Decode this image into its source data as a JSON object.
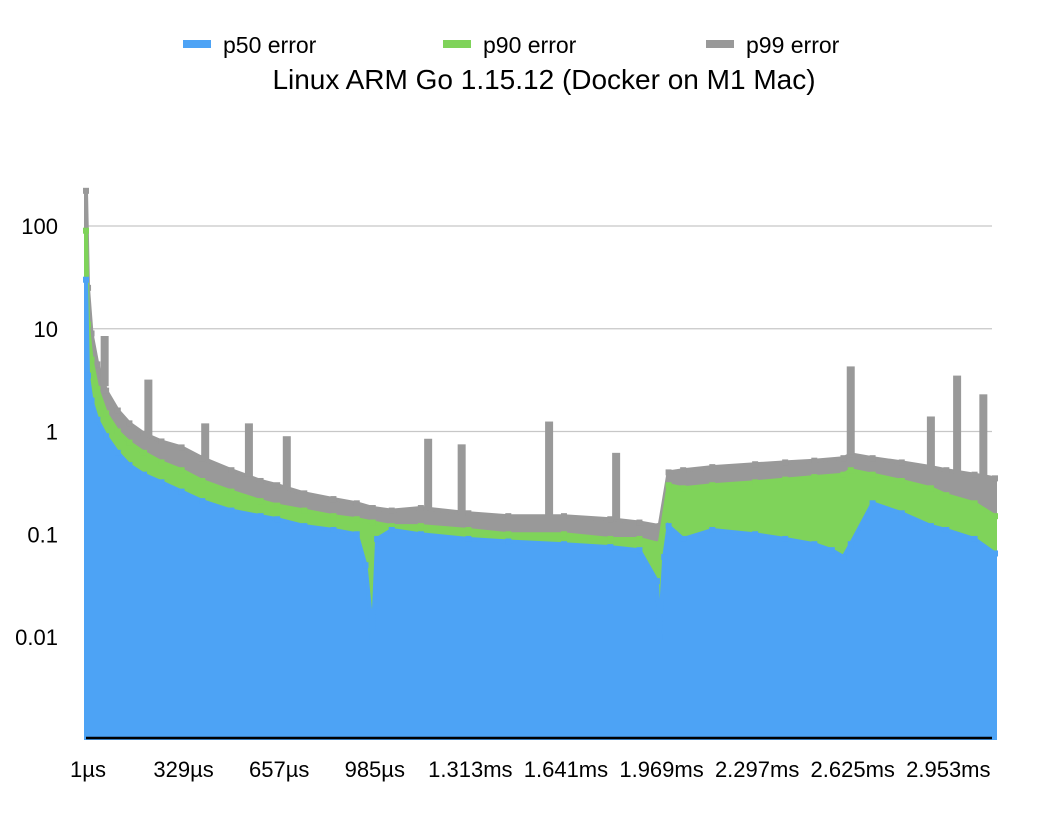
{
  "chart_data": {
    "type": "area",
    "title": "Linux ARM Go 1.15.12 (Docker on M1 Mac)",
    "xlabel": "",
    "ylabel": "",
    "y_scale": "log",
    "ylim": [
      0.001,
      1000
    ],
    "y_ticks": [
      0.01,
      0.1,
      1,
      10,
      100
    ],
    "y_tick_labels": [
      "0.01",
      "0.1",
      "1",
      "10",
      "100"
    ],
    "x_range_us": [
      1,
      3120
    ],
    "x_ticks_us": [
      1,
      329,
      657,
      985,
      1313,
      1641,
      1969,
      2297,
      2625,
      2953
    ],
    "x_tick_labels": [
      "1µs",
      "329µs",
      "657µs",
      "985µs",
      "1.313ms",
      "1.641ms",
      "1.969ms",
      "2.297ms",
      "2.625ms",
      "2.953ms"
    ],
    "grid": true,
    "legend_position": "top",
    "series": [
      {
        "name": "p50 error",
        "color": "#4da3f5",
        "x_us": [
          1,
          8,
          20,
          40,
          70,
          110,
          150,
          200,
          260,
          329,
          400,
          500,
          600,
          657,
          750,
          850,
          930,
          960,
          985,
          1000,
          1050,
          1150,
          1313,
          1450,
          1641,
          1800,
          1900,
          1960,
          1969,
          1985,
          2000,
          2050,
          2150,
          2297,
          2400,
          2500,
          2560,
          2600,
          2625,
          2700,
          2800,
          2900,
          2953,
          3050,
          3120
        ],
        "values": [
          30,
          3.5,
          2.0,
          1.3,
          0.9,
          0.62,
          0.47,
          0.38,
          0.32,
          0.26,
          0.21,
          0.17,
          0.15,
          0.14,
          0.12,
          0.11,
          0.1,
          0.05,
          0.01,
          0.09,
          0.11,
          0.1,
          0.09,
          0.085,
          0.08,
          0.075,
          0.07,
          0.035,
          0.01,
          0.06,
          0.12,
          0.09,
          0.11,
          0.1,
          0.09,
          0.08,
          0.07,
          0.06,
          0.08,
          0.2,
          0.16,
          0.12,
          0.11,
          0.09,
          0.065
        ]
      },
      {
        "name": "p90 error",
        "color": "#7fd35a",
        "x_us": [
          1,
          8,
          20,
          40,
          70,
          110,
          150,
          200,
          260,
          329,
          400,
          500,
          600,
          657,
          750,
          850,
          930,
          985,
          1050,
          1150,
          1313,
          1450,
          1641,
          1800,
          1900,
          1969,
          2000,
          2050,
          2150,
          2297,
          2400,
          2500,
          2600,
          2625,
          2700,
          2800,
          2900,
          2953,
          3050,
          3120
        ],
        "values": [
          90,
          11,
          5.0,
          2.6,
          1.5,
          1.0,
          0.78,
          0.62,
          0.5,
          0.42,
          0.33,
          0.26,
          0.21,
          0.19,
          0.17,
          0.15,
          0.14,
          0.13,
          0.12,
          0.12,
          0.11,
          0.1,
          0.1,
          0.09,
          0.09,
          0.08,
          0.3,
          0.28,
          0.3,
          0.32,
          0.34,
          0.36,
          0.38,
          0.42,
          0.38,
          0.33,
          0.28,
          0.24,
          0.2,
          0.15
        ]
      },
      {
        "name": "p99 error",
        "color": "#999999",
        "x_us": [
          1,
          8,
          20,
          40,
          70,
          110,
          150,
          200,
          260,
          329,
          400,
          500,
          600,
          657,
          750,
          850,
          930,
          985,
          1050,
          1150,
          1313,
          1450,
          1641,
          1800,
          1900,
          1969,
          2000,
          2050,
          2150,
          2297,
          2400,
          2500,
          2600,
          2625,
          2700,
          2800,
          2900,
          2953,
          3050,
          3120
        ],
        "values": [
          220,
          25,
          9.0,
          4.5,
          2.5,
          1.6,
          1.2,
          0.95,
          0.8,
          0.7,
          0.55,
          0.42,
          0.33,
          0.3,
          0.25,
          0.22,
          0.2,
          0.18,
          0.17,
          0.18,
          0.16,
          0.15,
          0.15,
          0.14,
          0.13,
          0.12,
          0.4,
          0.42,
          0.45,
          0.48,
          0.5,
          0.52,
          0.55,
          0.6,
          0.55,
          0.5,
          0.45,
          0.42,
          0.38,
          0.35
        ]
      }
    ],
    "spikes": [
      {
        "series": "p99 error",
        "x_us": 65,
        "value": 8.5
      },
      {
        "series": "p99 error",
        "x_us": 215,
        "value": 3.2
      },
      {
        "series": "p99 error",
        "x_us": 410,
        "value": 1.2
      },
      {
        "series": "p99 error",
        "x_us": 560,
        "value": 1.2
      },
      {
        "series": "p99 error",
        "x_us": 690,
        "value": 0.9
      },
      {
        "series": "p99 error",
        "x_us": 1175,
        "value": 0.85
      },
      {
        "series": "p99 error",
        "x_us": 1290,
        "value": 0.75
      },
      {
        "series": "p99 error",
        "x_us": 1590,
        "value": 1.25
      },
      {
        "series": "p99 error",
        "x_us": 1820,
        "value": 0.62
      },
      {
        "series": "p99 error",
        "x_us": 2625,
        "value": 4.3
      },
      {
        "series": "p99 error",
        "x_us": 2900,
        "value": 1.4
      },
      {
        "series": "p99 error",
        "x_us": 2990,
        "value": 3.5
      },
      {
        "series": "p99 error",
        "x_us": 3080,
        "value": 2.3
      }
    ]
  }
}
